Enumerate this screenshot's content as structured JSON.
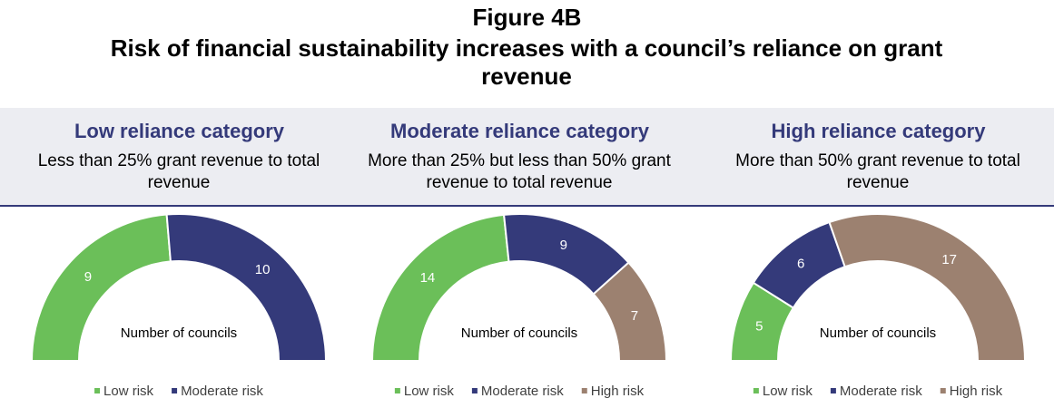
{
  "header": {
    "label": "Figure 4B",
    "title": "Risk of financial sustainability increases with a council’s reliance on grant revenue"
  },
  "chart_data": [
    {
      "type": "semidonut",
      "title": "Low reliance category",
      "subtitle": "Less than 25% grant revenue to total revenue",
      "center_label": "Number of councils",
      "categories": [
        "Low risk",
        "Moderate risk"
      ],
      "values": [
        9,
        10
      ],
      "colors": [
        "#6bbf59",
        "#343a7a"
      ]
    },
    {
      "type": "semidonut",
      "title": "Moderate reliance category",
      "subtitle": "More than 25% but less than 50% grant revenue to total revenue",
      "center_label": "Number of councils",
      "categories": [
        "Low risk",
        "Moderate risk",
        "High risk"
      ],
      "values": [
        14,
        9,
        7
      ],
      "colors": [
        "#6bbf59",
        "#343a7a",
        "#9c8170"
      ]
    },
    {
      "type": "semidonut",
      "title": "High reliance category",
      "subtitle": "More than 50% grant revenue to total revenue",
      "center_label": "Number of councils",
      "categories": [
        "Low risk",
        "Moderate risk",
        "High risk"
      ],
      "values": [
        5,
        6,
        17
      ],
      "colors": [
        "#6bbf59",
        "#343a7a",
        "#9c8170"
      ]
    }
  ]
}
